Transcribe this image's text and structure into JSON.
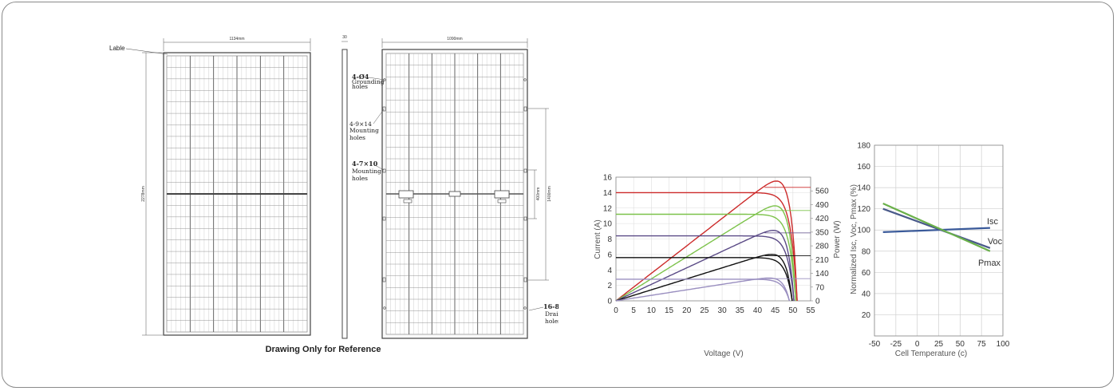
{
  "drawing": {
    "label_callout": "Lable",
    "front_width": "1134mm",
    "front_height": "2278mm",
    "side_thickness": "30",
    "back_width": "1090mm",
    "back_dim_400": "400mm",
    "back_dim_1400": "1400mm",
    "grounding_qty": "4-Ø4",
    "grounding_text": "Grounding",
    "grounding_text2": "holes",
    "mount1_qty": "4-9×14",
    "mount1_text": "Mounting",
    "mount1_text2": "holes",
    "mount2_qty": "4-7×10",
    "mount2_text": "Mounting",
    "mount2_text2": "holes",
    "drain_qty": "16-8×3",
    "drain_text": "Drainge",
    "drain_text2": "holes",
    "caption": "Drawing Only for Reference"
  },
  "chart_data": [
    {
      "type": "line",
      "xlabel": "Voltage (V)",
      "ylabel": "Current (A)",
      "y2label": "Power (W)",
      "xlim": [
        0,
        55
      ],
      "ylim": [
        0,
        16
      ],
      "y2lim": [
        0,
        630
      ],
      "xticks": [
        0,
        5,
        10,
        15,
        20,
        25,
        30,
        35,
        40,
        45,
        50,
        55
      ],
      "yticks": [
        0,
        2,
        4,
        6,
        8,
        10,
        12,
        14,
        16
      ],
      "y2ticks": [
        0,
        70,
        140,
        210,
        280,
        350,
        420,
        490,
        560
      ],
      "series": [
        {
          "color": "#cc2a2a",
          "isc": 14.0,
          "voc": 51.2,
          "vmp": 42.5,
          "pmax": 580
        },
        {
          "color": "#7cc24a",
          "isc": 11.2,
          "voc": 50.8,
          "vmp": 42.0,
          "pmax": 462
        },
        {
          "color": "#5a4a86",
          "isc": 8.4,
          "voc": 50.3,
          "vmp": 42.0,
          "pmax": 348
        },
        {
          "color": "#111111",
          "isc": 5.6,
          "voc": 49.8,
          "vmp": 41.5,
          "pmax": 232
        },
        {
          "color": "#9a8fc0",
          "isc": 2.8,
          "voc": 49.0,
          "vmp": 41.0,
          "pmax": 115
        }
      ]
    },
    {
      "type": "line",
      "xlabel": "Cell Temperature (c)",
      "ylabel": "Normalized Isc, Voc, Pmax (%)",
      "xlim": [
        -50,
        100
      ],
      "ylim": [
        0,
        180
      ],
      "xticks": [
        -50,
        -25,
        0,
        25,
        50,
        75,
        100
      ],
      "yticks": [
        20,
        40,
        60,
        80,
        100,
        120,
        140,
        160,
        180
      ],
      "series": [
        {
          "name": "Isc",
          "color": "#3a5a9a",
          "points": [
            [
              -40,
              98
            ],
            [
              85,
              102
            ]
          ]
        },
        {
          "name": "Voc",
          "color": "#4a5a8a",
          "points": [
            [
              -40,
              120
            ],
            [
              85,
              83
            ]
          ]
        },
        {
          "name": "Pmax",
          "color": "#6ab04a",
          "points": [
            [
              -40,
              125
            ],
            [
              85,
              80
            ]
          ]
        }
      ]
    }
  ]
}
